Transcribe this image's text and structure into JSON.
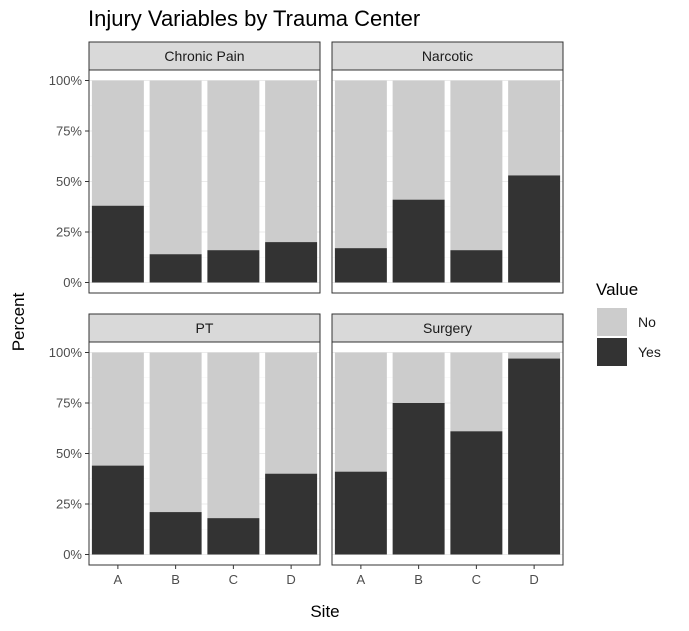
{
  "chart_data": {
    "type": "bar",
    "stacked": true,
    "title": "Injury Variables by Trauma Center",
    "xlabel": "Site",
    "ylabel": "Percent",
    "ylim": [
      0,
      100
    ],
    "yticks": [
      "0%",
      "25%",
      "50%",
      "75%",
      "100%"
    ],
    "categories": [
      "A",
      "B",
      "C",
      "D"
    ],
    "legend": {
      "title": "Value",
      "placement": "right",
      "entries": [
        {
          "name": "No",
          "color": "#cccccc"
        },
        {
          "name": "Yes",
          "color": "#333333"
        }
      ]
    },
    "panels": [
      {
        "name": "Chronic Pain",
        "yes_values": [
          38,
          14,
          16,
          20
        ]
      },
      {
        "name": "Narcotic",
        "yes_values": [
          17,
          41,
          16,
          53
        ]
      },
      {
        "name": "PT",
        "yes_values": [
          44,
          21,
          18,
          40
        ]
      },
      {
        "name": "Surgery",
        "yes_values": [
          41,
          75,
          61,
          97
        ]
      }
    ],
    "colors": {
      "no": "#cccccc",
      "yes": "#333333",
      "strip_bg": "#d9d9d9",
      "panel_border": "#333333",
      "grid": "#ebebeb"
    }
  }
}
